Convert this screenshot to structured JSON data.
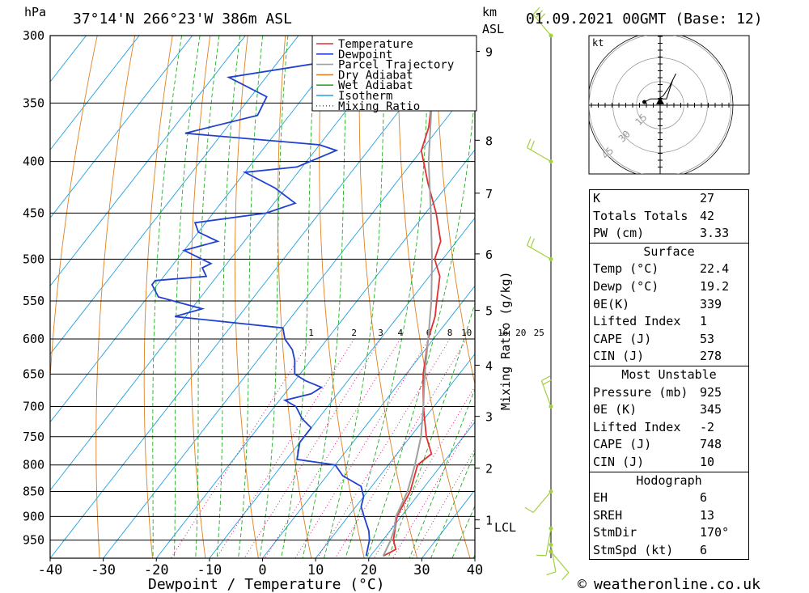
{
  "header": {
    "p_unit": "hPa",
    "location": "37°14'N  266°23'W  386m  ASL",
    "km_unit": "km",
    "asl": "ASL",
    "datetime": "01.09.2021  00GMT  (Base: 12)"
  },
  "colors": {
    "temperature": "#e03030",
    "dewpoint": "#2040d0",
    "parcel": "#a0a0a0",
    "dry_adiabat": "#e08020",
    "wet_adiabat": "#20b020",
    "isotherm": "#20a0e0",
    "mixing_ratio": "#d02080",
    "wind": "#a0d040"
  },
  "legend": [
    {
      "label": "Temperature",
      "color": "#e03030",
      "style": "solid"
    },
    {
      "label": "Dewpoint",
      "color": "#2040d0",
      "style": "solid"
    },
    {
      "label": "Parcel Trajectory",
      "color": "#a0a0a0",
      "style": "solid"
    },
    {
      "label": "Dry Adiabat",
      "color": "#e08020",
      "style": "solid"
    },
    {
      "label": "Wet Adiabat",
      "color": "#20b020",
      "style": "solid"
    },
    {
      "label": "Isotherm",
      "color": "#20a0e0",
      "style": "solid"
    },
    {
      "label": "Mixing Ratio",
      "color": "#d02080",
      "style": "dotted"
    }
  ],
  "chart_data": {
    "type": "line",
    "xlabel": "Dewpoint / Temperature (°C)",
    "ylabel": "hPa",
    "right_label": "Mixing Ratio (g/kg)",
    "x_ticks": [
      -40,
      -30,
      -20,
      -10,
      0,
      10,
      20,
      30,
      40
    ],
    "xlim": [
      -40,
      40
    ],
    "pressure_levels": [
      300,
      350,
      400,
      450,
      500,
      550,
      600,
      650,
      700,
      750,
      800,
      850,
      900,
      950
    ],
    "ylim": [
      300,
      990
    ],
    "km_ticks": [
      {
        "km": "9",
        "p": 311
      },
      {
        "km": "8",
        "p": 381
      },
      {
        "km": "7",
        "p": 430
      },
      {
        "km": "6",
        "p": 494
      },
      {
        "km": "5",
        "p": 562
      },
      {
        "km": "4",
        "p": 637
      },
      {
        "km": "3",
        "p": 716
      },
      {
        "km": "2",
        "p": 806
      },
      {
        "km": "1",
        "p": 907
      }
    ],
    "lcl": {
      "label": "LCL",
      "p": 925
    },
    "mixing_ratio_labels": [
      "1",
      "2",
      "3",
      "4",
      "6",
      "8",
      "10",
      "16",
      "20",
      "25"
    ],
    "series": [
      {
        "name": "Temperature",
        "points": [
          [
            300,
            -43.5
          ],
          [
            350,
            -35
          ],
          [
            370,
            -32
          ],
          [
            390,
            -30
          ],
          [
            420,
            -24
          ],
          [
            450,
            -18
          ],
          [
            480,
            -13
          ],
          [
            500,
            -11.5
          ],
          [
            520,
            -8
          ],
          [
            550,
            -5
          ],
          [
            570,
            -3
          ],
          [
            600,
            -1
          ],
          [
            650,
            3.2
          ],
          [
            700,
            8
          ],
          [
            750,
            13
          ],
          [
            780,
            16.5
          ],
          [
            800,
            15.5
          ],
          [
            850,
            18
          ],
          [
            900,
            19.2
          ],
          [
            950,
            22
          ],
          [
            970,
            23.8
          ],
          [
            985,
            22.4
          ]
        ]
      },
      {
        "name": "Dewpoint",
        "points": [
          [
            300,
            -65
          ],
          [
            320,
            -63
          ],
          [
            330,
            -77
          ],
          [
            345,
            -67
          ],
          [
            360,
            -66
          ],
          [
            375,
            -77
          ],
          [
            385,
            -50
          ],
          [
            390,
            -46
          ],
          [
            405,
            -51
          ],
          [
            410,
            -60
          ],
          [
            425,
            -52
          ],
          [
            440,
            -46
          ],
          [
            450,
            -50
          ],
          [
            460,
            -62
          ],
          [
            470,
            -60
          ],
          [
            480,
            -55
          ],
          [
            490,
            -60
          ],
          [
            505,
            -53
          ],
          [
            510,
            -54
          ],
          [
            520,
            -52
          ],
          [
            525,
            -61
          ],
          [
            530,
            -61
          ],
          [
            545,
            -58
          ],
          [
            560,
            -48
          ],
          [
            570,
            -52
          ],
          [
            585,
            -30
          ],
          [
            600,
            -28
          ],
          [
            615,
            -25
          ],
          [
            630,
            -23
          ],
          [
            650,
            -21
          ],
          [
            660,
            -18
          ],
          [
            670,
            -14
          ],
          [
            680,
            -15
          ],
          [
            690,
            -19
          ],
          [
            700,
            -16
          ],
          [
            720,
            -13
          ],
          [
            735,
            -10
          ],
          [
            760,
            -10
          ],
          [
            790,
            -8
          ],
          [
            800,
            0
          ],
          [
            820,
            3
          ],
          [
            840,
            8
          ],
          [
            860,
            10
          ],
          [
            880,
            11
          ],
          [
            900,
            13
          ],
          [
            930,
            16
          ],
          [
            950,
            17.5
          ],
          [
            985,
            19.2
          ]
        ]
      },
      {
        "name": "Parcel Trajectory",
        "points": [
          [
            300,
            -45
          ],
          [
            350,
            -35
          ],
          [
            400,
            -27
          ],
          [
            450,
            -19
          ],
          [
            500,
            -12
          ],
          [
            550,
            -6
          ],
          [
            600,
            -1
          ],
          [
            650,
            3.5
          ],
          [
            700,
            8
          ],
          [
            750,
            12
          ],
          [
            800,
            15
          ],
          [
            850,
            17.5
          ],
          [
            900,
            19
          ],
          [
            925,
            20.5
          ],
          [
            950,
            21.5
          ],
          [
            985,
            22.4
          ]
        ]
      }
    ],
    "wind_profile": [
      {
        "p": 300,
        "dir": 320,
        "spd": 25
      },
      {
        "p": 400,
        "dir": 300,
        "spd": 20
      },
      {
        "p": 500,
        "dir": 300,
        "spd": 20
      },
      {
        "p": 700,
        "dir": 340,
        "spd": 15
      },
      {
        "p": 850,
        "dir": 220,
        "spd": 10
      },
      {
        "p": 925,
        "dir": 190,
        "spd": 5
      },
      {
        "p": 960,
        "dir": 170,
        "spd": 5
      },
      {
        "p": 975,
        "dir": 140,
        "spd": 5
      }
    ]
  },
  "hodograph": {
    "unit": "kt",
    "ring_labels": [
      "15",
      "30",
      "45"
    ],
    "points": [
      [
        0,
        0
      ],
      [
        -0.5,
        -2
      ],
      [
        1,
        -3
      ],
      [
        3,
        -6
      ],
      [
        5,
        -10
      ],
      [
        4,
        -8
      ],
      [
        2,
        -2
      ],
      [
        -3,
        -2
      ],
      [
        -5,
        -1
      ]
    ]
  },
  "indices": {
    "k_label": "K",
    "k_val": "27",
    "tt_label": "Totals Totals",
    "tt_val": "42",
    "pw_label": "PW (cm)",
    "pw_val": "3.33"
  },
  "surface": {
    "title": "Surface",
    "temp_label": "Temp (°C)",
    "temp_val": "22.4",
    "dewp_label": "Dewp (°C)",
    "dewp_val": "19.2",
    "thetae_label": "θE(K)",
    "thetae_val": "339",
    "li_label": "Lifted Index",
    "li_val": "1",
    "cape_label": "CAPE (J)",
    "cape_val": "53",
    "cin_label": "CIN (J)",
    "cin_val": "278"
  },
  "most_unstable": {
    "title": "Most Unstable",
    "pres_label": "Pressure (mb)",
    "pres_val": "925",
    "thetae_label": "θE (K)",
    "thetae_val": "345",
    "li_label": "Lifted Index",
    "li_val": "-2",
    "cape_label": "CAPE (J)",
    "cape_val": "748",
    "cin_label": "CIN (J)",
    "cin_val": "10"
  },
  "hodograph_table": {
    "title": "Hodograph",
    "eh_label": "EH",
    "eh_val": "6",
    "sreh_label": "SREH",
    "sreh_val": "13",
    "dir_label": "StmDir",
    "dir_val": "170°",
    "spd_label": "StmSpd (kt)",
    "spd_val": "6"
  },
  "footer": {
    "copyright_symbol": "©",
    "site": "weatheronline.co.uk"
  }
}
